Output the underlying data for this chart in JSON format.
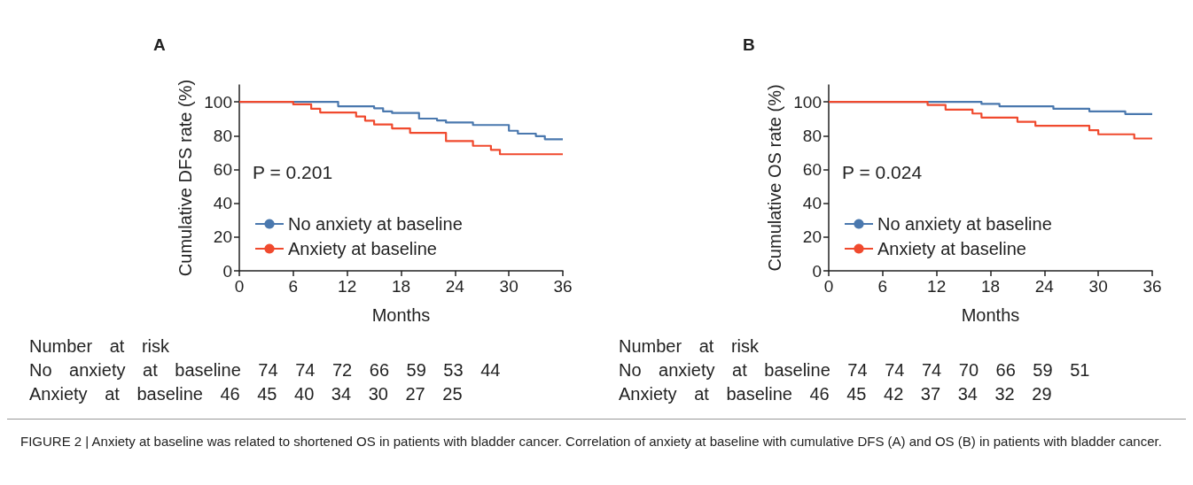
{
  "chart_data": [
    {
      "type": "step",
      "title": "A",
      "xlabel": "Months",
      "ylabel": "Cumulative DFS rate (%)",
      "xlim": [
        0,
        36
      ],
      "xticks": [
        0,
        6,
        12,
        18,
        24,
        30,
        36
      ],
      "ylim": [
        0,
        110
      ],
      "yticks": [
        0,
        20,
        40,
        60,
        80,
        100
      ],
      "legend": "bottom left",
      "grid": false,
      "marker": "none",
      "line_style": "solid",
      "series": [
        {
          "name": "No anxiety at baseline",
          "color": "#4a78ae",
          "x": [
            0,
            11,
            15,
            16,
            17,
            20,
            22,
            23,
            26,
            30,
            31,
            33,
            34,
            36
          ],
          "values": [
            100,
            97.4,
            96.2,
            94.3,
            93.4,
            90.1,
            89,
            87.8,
            86.3,
            82.9,
            81.2,
            79.7,
            77.9,
            77.9
          ]
        },
        {
          "name": "Anxiety at baseline",
          "color": "#f04a2e",
          "x": [
            0,
            6,
            8,
            9,
            13,
            14,
            15,
            17,
            19,
            23,
            26,
            28,
            29,
            36
          ],
          "values": [
            100,
            98.5,
            95.9,
            93.7,
            91.3,
            88.9,
            86.6,
            84.3,
            81.7,
            76.8,
            74,
            71.6,
            69,
            69
          ]
        }
      ],
      "annotations": [
        "P = 0.201",
        "Number at risk",
        "No anxiety at baseline 74 74 72 66 59 53 44",
        "Anxiety at baseline 46 45 40 34 30 27 25"
      ]
    },
    {
      "type": "step",
      "title": "B",
      "xlabel": "Months",
      "ylabel": "Cumulative OS rate (%)",
      "xlim": [
        0,
        36
      ],
      "xticks": [
        0,
        6,
        12,
        18,
        24,
        30,
        36
      ],
      "ylim": [
        0,
        110
      ],
      "yticks": [
        0,
        20,
        40,
        60,
        80,
        100
      ],
      "legend": "bottom left",
      "grid": false,
      "marker": "none",
      "line_style": "solid",
      "series": [
        {
          "name": "No anxiety at baseline",
          "color": "#4a78ae",
          "x": [
            0,
            17,
            19,
            25,
            29,
            33,
            36
          ],
          "values": [
            100,
            98.8,
            97.4,
            95.9,
            94.4,
            92.8,
            92.8
          ]
        },
        {
          "name": "Anxiety at baseline",
          "color": "#f04a2e",
          "x": [
            0,
            11,
            13,
            16,
            17,
            21,
            23,
            29,
            30,
            34,
            36
          ],
          "values": [
            100,
            98.2,
            95.4,
            93.1,
            90.7,
            88.2,
            85.8,
            83.2,
            80.8,
            78.3,
            78.3
          ]
        }
      ],
      "annotations": [
        "P = 0.024",
        "Number at risk",
        "No anxiety at baseline 74 74 74 70 66 59 51",
        "Anxiety at baseline 46 45 42 37 34 32 29"
      ]
    },
    {
      "type": "other",
      "annotations": [
        "FIGURE 2 | Anxiety at baseline was related to shortened OS in patients with bladder cancer. Correlation of anxiety at baseline with cumulative DFS (A) and OS (B) in patients with bladder cancer."
      ]
    }
  ]
}
